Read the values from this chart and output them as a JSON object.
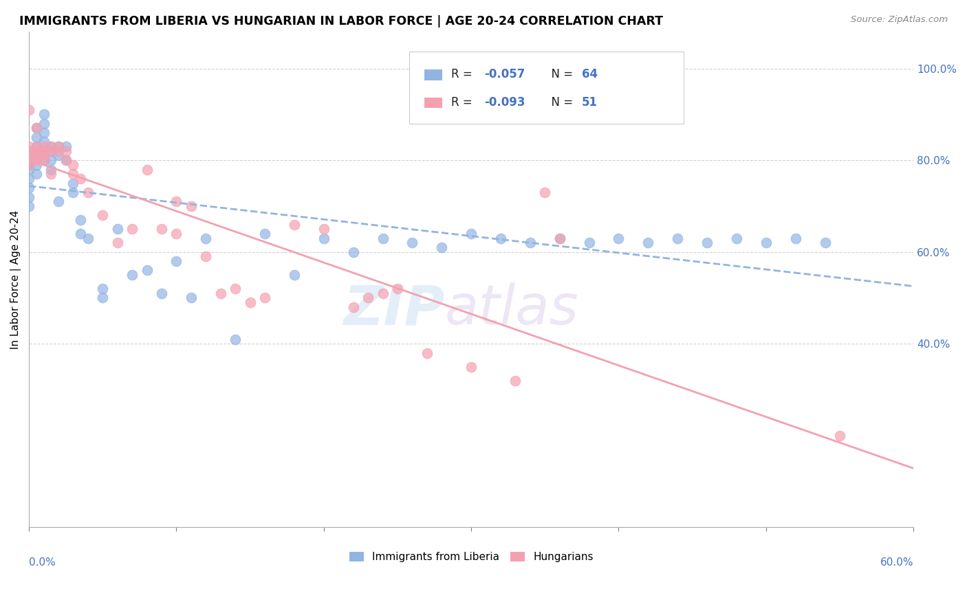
{
  "title": "IMMIGRANTS FROM LIBERIA VS HUNGARIAN IN LABOR FORCE | AGE 20-24 CORRELATION CHART",
  "source_text": "Source: ZipAtlas.com",
  "ylabel": "In Labor Force | Age 20-24",
  "right_yticks": [
    "40.0%",
    "60.0%",
    "80.0%",
    "100.0%"
  ],
  "right_ytick_vals": [
    0.4,
    0.6,
    0.8,
    1.0
  ],
  "legend_label1": "Immigrants from Liberia",
  "legend_label2": "Hungarians",
  "color_liberia": "#92b4e3",
  "color_hungarian": "#f4a0b0",
  "watermark_zip": "ZIP",
  "watermark_atlas": "atlas",
  "xlim": [
    0.0,
    0.6
  ],
  "ylim": [
    0.0,
    1.08
  ],
  "liberia_x": [
    0.0,
    0.0,
    0.0,
    0.0,
    0.0,
    0.0,
    0.0,
    0.0,
    0.005,
    0.005,
    0.005,
    0.005,
    0.005,
    0.005,
    0.01,
    0.01,
    0.01,
    0.01,
    0.01,
    0.01,
    0.015,
    0.015,
    0.015,
    0.015,
    0.02,
    0.02,
    0.02,
    0.025,
    0.025,
    0.03,
    0.03,
    0.035,
    0.035,
    0.04,
    0.05,
    0.05,
    0.06,
    0.07,
    0.08,
    0.09,
    0.1,
    0.11,
    0.12,
    0.14,
    0.16,
    0.18,
    0.2,
    0.22,
    0.24,
    0.26,
    0.28,
    0.3,
    0.32,
    0.34,
    0.36,
    0.38,
    0.4,
    0.42,
    0.44,
    0.46,
    0.48,
    0.5,
    0.52,
    0.54
  ],
  "liberia_y": [
    0.82,
    0.8,
    0.79,
    0.78,
    0.76,
    0.74,
    0.72,
    0.7,
    0.87,
    0.85,
    0.83,
    0.81,
    0.79,
    0.77,
    0.9,
    0.88,
    0.86,
    0.84,
    0.82,
    0.8,
    0.83,
    0.82,
    0.8,
    0.78,
    0.83,
    0.81,
    0.71,
    0.83,
    0.8,
    0.75,
    0.73,
    0.67,
    0.64,
    0.63,
    0.52,
    0.5,
    0.65,
    0.55,
    0.56,
    0.51,
    0.58,
    0.5,
    0.63,
    0.41,
    0.64,
    0.55,
    0.63,
    0.6,
    0.63,
    0.62,
    0.61,
    0.64,
    0.63,
    0.62,
    0.63,
    0.62,
    0.63,
    0.62,
    0.63,
    0.62,
    0.63,
    0.62,
    0.63,
    0.62
  ],
  "hungarian_x": [
    0.0,
    0.0,
    0.0,
    0.0,
    0.0,
    0.0,
    0.005,
    0.005,
    0.005,
    0.005,
    0.005,
    0.01,
    0.01,
    0.01,
    0.01,
    0.015,
    0.015,
    0.015,
    0.02,
    0.02,
    0.025,
    0.025,
    0.03,
    0.03,
    0.035,
    0.04,
    0.05,
    0.06,
    0.07,
    0.08,
    0.09,
    0.1,
    0.1,
    0.11,
    0.12,
    0.13,
    0.14,
    0.15,
    0.16,
    0.18,
    0.2,
    0.22,
    0.23,
    0.24,
    0.25,
    0.27,
    0.3,
    0.33,
    0.35,
    0.36,
    0.55
  ],
  "hungarian_y": [
    0.83,
    0.82,
    0.81,
    0.8,
    0.79,
    0.91,
    0.83,
    0.82,
    0.81,
    0.8,
    0.87,
    0.83,
    0.82,
    0.81,
    0.8,
    0.83,
    0.82,
    0.77,
    0.83,
    0.82,
    0.82,
    0.8,
    0.79,
    0.77,
    0.76,
    0.73,
    0.68,
    0.62,
    0.65,
    0.78,
    0.65,
    0.71,
    0.64,
    0.7,
    0.59,
    0.51,
    0.52,
    0.49,
    0.5,
    0.66,
    0.65,
    0.48,
    0.5,
    0.51,
    0.52,
    0.38,
    0.35,
    0.32,
    0.73,
    0.63,
    0.2
  ]
}
